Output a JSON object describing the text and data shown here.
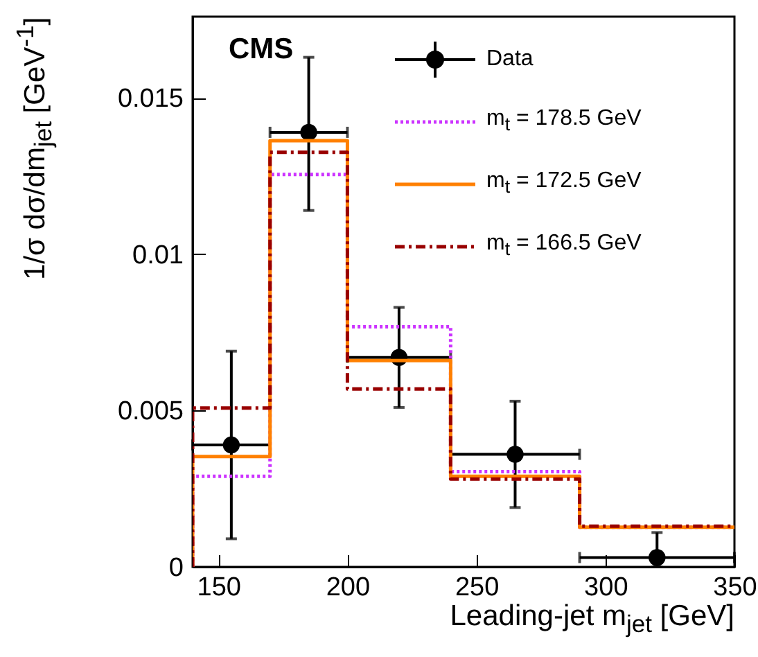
{
  "chart_data": {
    "type": "histogram",
    "xlabel": "Leading-jet m$_{jet}$ [GeV]",
    "ylabel": "1/σ dσ/dm$_{jet}$ [GeV$^{-1}$]",
    "annotations": [
      "CMS"
    ],
    "bins": [
      140,
      170,
      200,
      240,
      290,
      350
    ],
    "xlim": [
      140,
      350
    ],
    "xticks": [
      150,
      200,
      250,
      300,
      350
    ],
    "ylim": [
      0,
      0.0176
    ],
    "yticks": [
      0,
      0.005,
      0.01,
      0.015
    ],
    "legend": "top right",
    "series": [
      {
        "name": "Data",
        "type": "scatter",
        "color": "#000000",
        "marker": "circle",
        "x": [
          155,
          185,
          220,
          265,
          320
        ],
        "values": [
          0.0039,
          0.0139,
          0.0067,
          0.0036,
          0.0003
        ],
        "errors": [
          [
            0.0009,
            0.0069
          ],
          [
            0.0114,
            0.0163
          ],
          [
            0.0051,
            0.0083
          ],
          [
            0.0019,
            0.0053
          ],
          [
            0,
            0.0011
          ]
        ],
        "xerrors": [
          15,
          15,
          20,
          25,
          30
        ]
      },
      {
        "name": "m$_{t}$ = 178.5 GeV",
        "color": "#cc33ff",
        "line_style": "dotted",
        "values": [
          0.0029,
          0.01255,
          0.00768,
          0.00305,
          0.00127
        ]
      },
      {
        "name": "m$_{t}$ = 172.5 GeV",
        "color": "#ff8000",
        "line_style": "solid",
        "values": [
          0.00353,
          0.01363,
          0.0066,
          0.0029,
          0.00127
        ]
      },
      {
        "name": "m$_{t}$ = 166.5 GeV",
        "color": "#990000",
        "line_style": "dashed",
        "values": [
          0.00508,
          0.01326,
          0.00569,
          0.00281,
          0.0013
        ]
      }
    ]
  }
}
